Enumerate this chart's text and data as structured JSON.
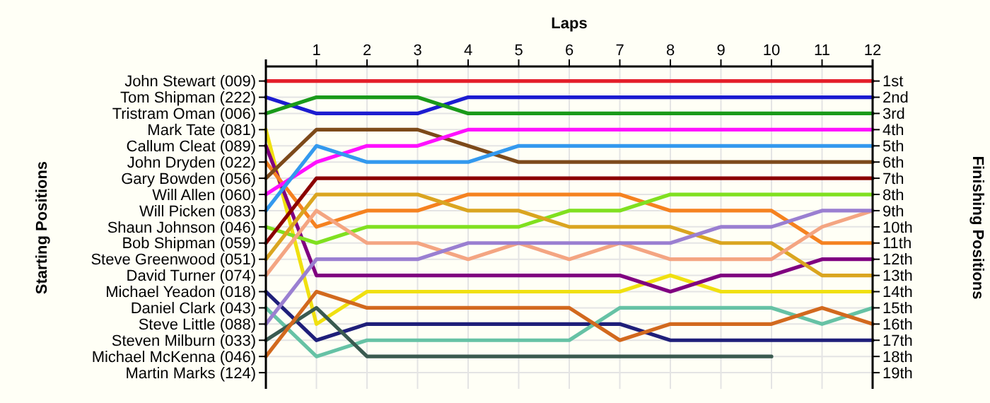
{
  "chart_data": {
    "type": "line",
    "xlabel": "Laps",
    "ylabel": "Finishing Positions",
    "x": [
      0,
      1,
      2,
      3,
      4,
      5,
      6,
      7,
      8,
      9,
      10,
      11,
      12
    ],
    "xlim": [
      0,
      12
    ],
    "xticks": [
      1,
      2,
      3,
      4,
      5,
      6,
      7,
      8,
      9,
      10,
      11,
      12
    ],
    "ylim": [
      20,
      0.1
    ],
    "yticks": [
      {
        "value": 1,
        "label": "1st"
      },
      {
        "value": 2,
        "label": "2nd"
      },
      {
        "value": 3,
        "label": "3rd"
      },
      {
        "value": 4,
        "label": "4th"
      },
      {
        "value": 5,
        "label": "5th"
      },
      {
        "value": 6,
        "label": "6th"
      },
      {
        "value": 7,
        "label": "7th"
      },
      {
        "value": 8,
        "label": "8th"
      },
      {
        "value": 9,
        "label": "9th"
      },
      {
        "value": 10,
        "label": "10th"
      },
      {
        "value": 11,
        "label": "11th"
      },
      {
        "value": 12,
        "label": "12th"
      },
      {
        "value": 13,
        "label": "13th"
      },
      {
        "value": 14,
        "label": "14th"
      },
      {
        "value": 15,
        "label": "15th"
      },
      {
        "value": 16,
        "label": "16th"
      },
      {
        "value": 17,
        "label": "17th"
      },
      {
        "value": 18,
        "label": "18th"
      },
      {
        "value": 19,
        "label": "19th"
      }
    ],
    "annotations": [
      "Starting Positions",
      "John Stewart (009)",
      "Tom Shipman (222)",
      "Tristram Oman (006)",
      "Mark Tate (081)",
      "Callum Cleat (089)",
      "John Dryden (022)",
      "Gary Bowden (056)",
      "Will Allen (060)",
      "Will Picken (083)",
      "Shaun Johnson (046)",
      "Bob Shipman (059)",
      "Steve Greenwood (051)",
      "David Turner (074)",
      "Michael Yeadon (018)",
      "Daniel Clark (043)",
      "Steve Little (088)",
      "Steven Milburn (033)",
      "Michael McKenna (046)",
      "Martin Marks (124)"
    ],
    "grid": true,
    "line_style": "solid",
    "series": [
      {
        "color": "#e4202a",
        "values": [
          1,
          1,
          1,
          1,
          1,
          1,
          1,
          1,
          1,
          1,
          1,
          1,
          1
        ]
      },
      {
        "color": "#1c1cd0",
        "values": [
          2,
          3,
          3,
          3,
          2,
          2,
          2,
          2,
          2,
          2,
          2,
          2,
          2
        ]
      },
      {
        "color": "#1a9a1a",
        "values": [
          3,
          2,
          2,
          2,
          3,
          3,
          3,
          3,
          3,
          3,
          3,
          3,
          3
        ]
      },
      {
        "color": "#f0e010",
        "values": [
          4,
          16,
          14,
          14,
          14,
          14,
          14,
          14,
          13,
          14,
          14,
          14,
          14
        ]
      },
      {
        "color": "#800080",
        "values": [
          5,
          13,
          13,
          13,
          13,
          13,
          13,
          13,
          14,
          13,
          13,
          12,
          12
        ]
      },
      {
        "color": "#f58220",
        "values": [
          6,
          10,
          9,
          9,
          8,
          8,
          8,
          8,
          9,
          9,
          9,
          11,
          11
        ]
      },
      {
        "color": "#7d4a1a",
        "values": [
          7,
          4,
          4,
          4,
          5,
          6,
          6,
          6,
          6,
          6,
          6,
          6,
          6
        ]
      },
      {
        "color": "#ff10ff",
        "values": [
          8,
          6,
          5,
          5,
          4,
          4,
          4,
          4,
          4,
          4,
          4,
          4,
          4
        ]
      },
      {
        "color": "#3399ee",
        "values": [
          9,
          5,
          6,
          6,
          6,
          5,
          5,
          5,
          5,
          5,
          5,
          5,
          5
        ]
      },
      {
        "color": "#80e020",
        "values": [
          10,
          11,
          10,
          10,
          10,
          10,
          9,
          9,
          8,
          8,
          8,
          8,
          8
        ]
      },
      {
        "color": "#8b0000",
        "values": [
          11,
          7,
          7,
          7,
          7,
          7,
          7,
          7,
          7,
          7,
          7,
          7,
          7
        ]
      },
      {
        "color": "#daa520",
        "values": [
          12,
          8,
          8,
          8,
          9,
          9,
          10,
          10,
          10,
          11,
          11,
          13,
          13
        ]
      },
      {
        "color": "#f4a582",
        "values": [
          13,
          9,
          11,
          11,
          12,
          11,
          12,
          11,
          12,
          12,
          12,
          10,
          9
        ]
      },
      {
        "color": "#1f1f7a",
        "values": [
          14,
          17,
          16,
          16,
          16,
          16,
          16,
          16,
          17,
          17,
          17,
          17,
          17
        ]
      },
      {
        "color": "#66c2a5",
        "values": [
          15,
          18,
          17,
          17,
          17,
          17,
          17,
          15,
          15,
          15,
          15,
          16,
          15
        ]
      },
      {
        "color": "#9a7fd1",
        "values": [
          16,
          12,
          12,
          12,
          11,
          11,
          11,
          11,
          11,
          10,
          10,
          9,
          9
        ]
      },
      {
        "color": "#3a5a50",
        "values": [
          17,
          15,
          18,
          18,
          18,
          18,
          18,
          18,
          18,
          18,
          18,
          null,
          null
        ]
      },
      {
        "color": "#d2691e",
        "values": [
          18,
          14,
          15,
          15,
          15,
          15,
          15,
          17,
          16,
          16,
          16,
          15,
          16
        ]
      }
    ]
  }
}
